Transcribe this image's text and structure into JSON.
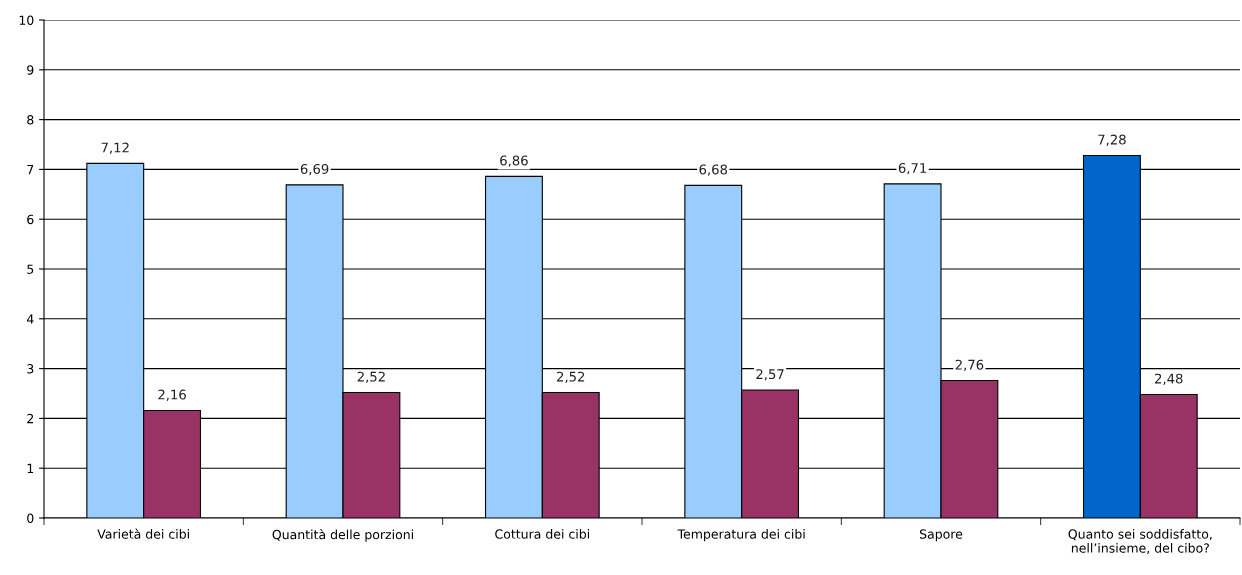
{
  "chart_data": {
    "type": "bar",
    "categories": [
      "Varietà dei cibi",
      "Quantità delle porzioni",
      "Cottura dei cibi",
      "Temperatura dei cibi",
      "Sapore",
      "Quanto sei soddisfatto,\nnell’insieme, del cibo?"
    ],
    "series": [
      {
        "color": "#99ccff",
        "colors": [
          "#99ccff",
          "#99ccff",
          "#99ccff",
          "#99ccff",
          "#99ccff",
          "#0066cc"
        ],
        "values": [
          7.12,
          6.69,
          6.86,
          6.68,
          6.71,
          7.28
        ],
        "value_labels": [
          "7,12",
          "6,69",
          "6,86",
          "6,68",
          "6,71",
          "7,28"
        ]
      },
      {
        "color": "#993366",
        "values": [
          2.16,
          2.52,
          2.52,
          2.57,
          2.76,
          2.48
        ],
        "value_labels": [
          "2,16",
          "2,52",
          "2,52",
          "2,57",
          "2,76",
          "2,48"
        ]
      }
    ],
    "ylim": [
      0,
      10
    ],
    "yticks": [
      0,
      1,
      2,
      3,
      4,
      5,
      6,
      7,
      8,
      9,
      10
    ],
    "grid": "y"
  }
}
